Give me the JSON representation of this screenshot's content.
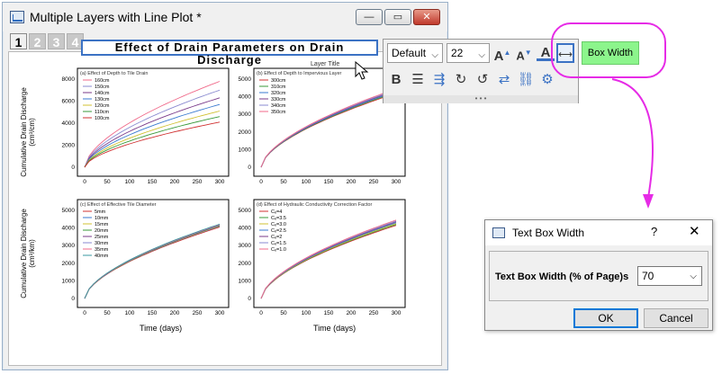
{
  "window": {
    "title": "Multiple Layers with Line Plot *",
    "min": "—",
    "max": "▭",
    "close": "✕"
  },
  "layers": [
    "1",
    "2",
    "3",
    "4"
  ],
  "graph_title": "Effect of Drain Parameters on Drain Discharge",
  "ylabel_line1": "Cumulative Drain Discharge",
  "ylabel_line2": "(cm³/cm)",
  "ylabel_line2b": "(cm³/km)",
  "xlabel": "Time (days)",
  "layer_title": "Layer Title",
  "panels": [
    {
      "title": "(a) Effect of Depth to Tile Drain",
      "legend": [
        "160cm",
        "150cm",
        "140cm",
        "130cm",
        "120cm",
        "110cm",
        "100cm"
      ],
      "colors": [
        "#f06a8a",
        "#8a8ad0",
        "#7a3a8a",
        "#3a7ad0",
        "#d0c030",
        "#3a9a3a",
        "#d03030"
      ],
      "yticks": [
        "8000",
        "6000",
        "4000",
        "2000",
        "0"
      ],
      "ymax": 8000,
      "finals": [
        7800,
        7000,
        6300,
        5700,
        5100,
        4600,
        4100
      ]
    },
    {
      "title": "(b) Effect of Depth to Impervious Layer",
      "legend": [
        "300cm",
        "310cm",
        "320cm",
        "330cm",
        "340cm",
        "350cm"
      ],
      "colors": [
        "#d03030",
        "#3a9a3a",
        "#3a7ad0",
        "#7a3a8a",
        "#8a8ad0",
        "#f06a8a"
      ],
      "yticks": [
        "5000",
        "4000",
        "3000",
        "2000",
        "1000",
        "0"
      ],
      "ymax": 5000,
      "finals": [
        4200,
        4250,
        4300,
        4350,
        4400,
        4450
      ]
    },
    {
      "title": "(c) Effect of Effective Tile Diameter",
      "legend": [
        "5mm",
        "10mm",
        "15mm",
        "20mm",
        "25mm",
        "30mm",
        "35mm",
        "40mm"
      ],
      "colors": [
        "#d03030",
        "#3a7ad0",
        "#d0c030",
        "#3a9a3a",
        "#7a3a8a",
        "#8a8ad0",
        "#f06a8a",
        "#3a9aa0"
      ],
      "yticks": [
        "5000",
        "4000",
        "3000",
        "2000",
        "1000",
        "0"
      ],
      "ymax": 5000,
      "finals": [
        4050,
        4100,
        4120,
        4140,
        4160,
        4180,
        4200,
        4220
      ]
    },
    {
      "title": "(d) Effect of Hydraulic Conductivity Correction Factor",
      "legend": [
        "Cₑ=4",
        "Cₑ=3.5",
        "Cₑ=3.0",
        "Cₑ=2.5",
        "Cₑ=2",
        "Cₑ=1.5",
        "Cₑ=1.0"
      ],
      "colors": [
        "#d03030",
        "#3a9a3a",
        "#d0c030",
        "#3a7ad0",
        "#7a3a8a",
        "#8a8ad0",
        "#f06a8a"
      ],
      "yticks": [
        "5000",
        "4000",
        "3000",
        "2000",
        "1000",
        "0"
      ],
      "ymax": 5000,
      "finals": [
        4150,
        4200,
        4250,
        4300,
        4350,
        4400,
        4450
      ]
    }
  ],
  "xticks": [
    "0",
    "50",
    "100",
    "150",
    "200",
    "250",
    "300"
  ],
  "toolbar": {
    "font": "Default",
    "size": "22",
    "bold": "B"
  },
  "callout": {
    "label": "Box Width"
  },
  "dialog": {
    "title": "Text Box Width",
    "help": "?",
    "close": "✕",
    "field_label": "Text Box Width (% of Page)s",
    "value": "70",
    "ok": "OK",
    "cancel": "Cancel"
  },
  "colors": {
    "accent": "#3b72c4",
    "highlight": "#e62be6",
    "button_green": "#8cf58c"
  }
}
